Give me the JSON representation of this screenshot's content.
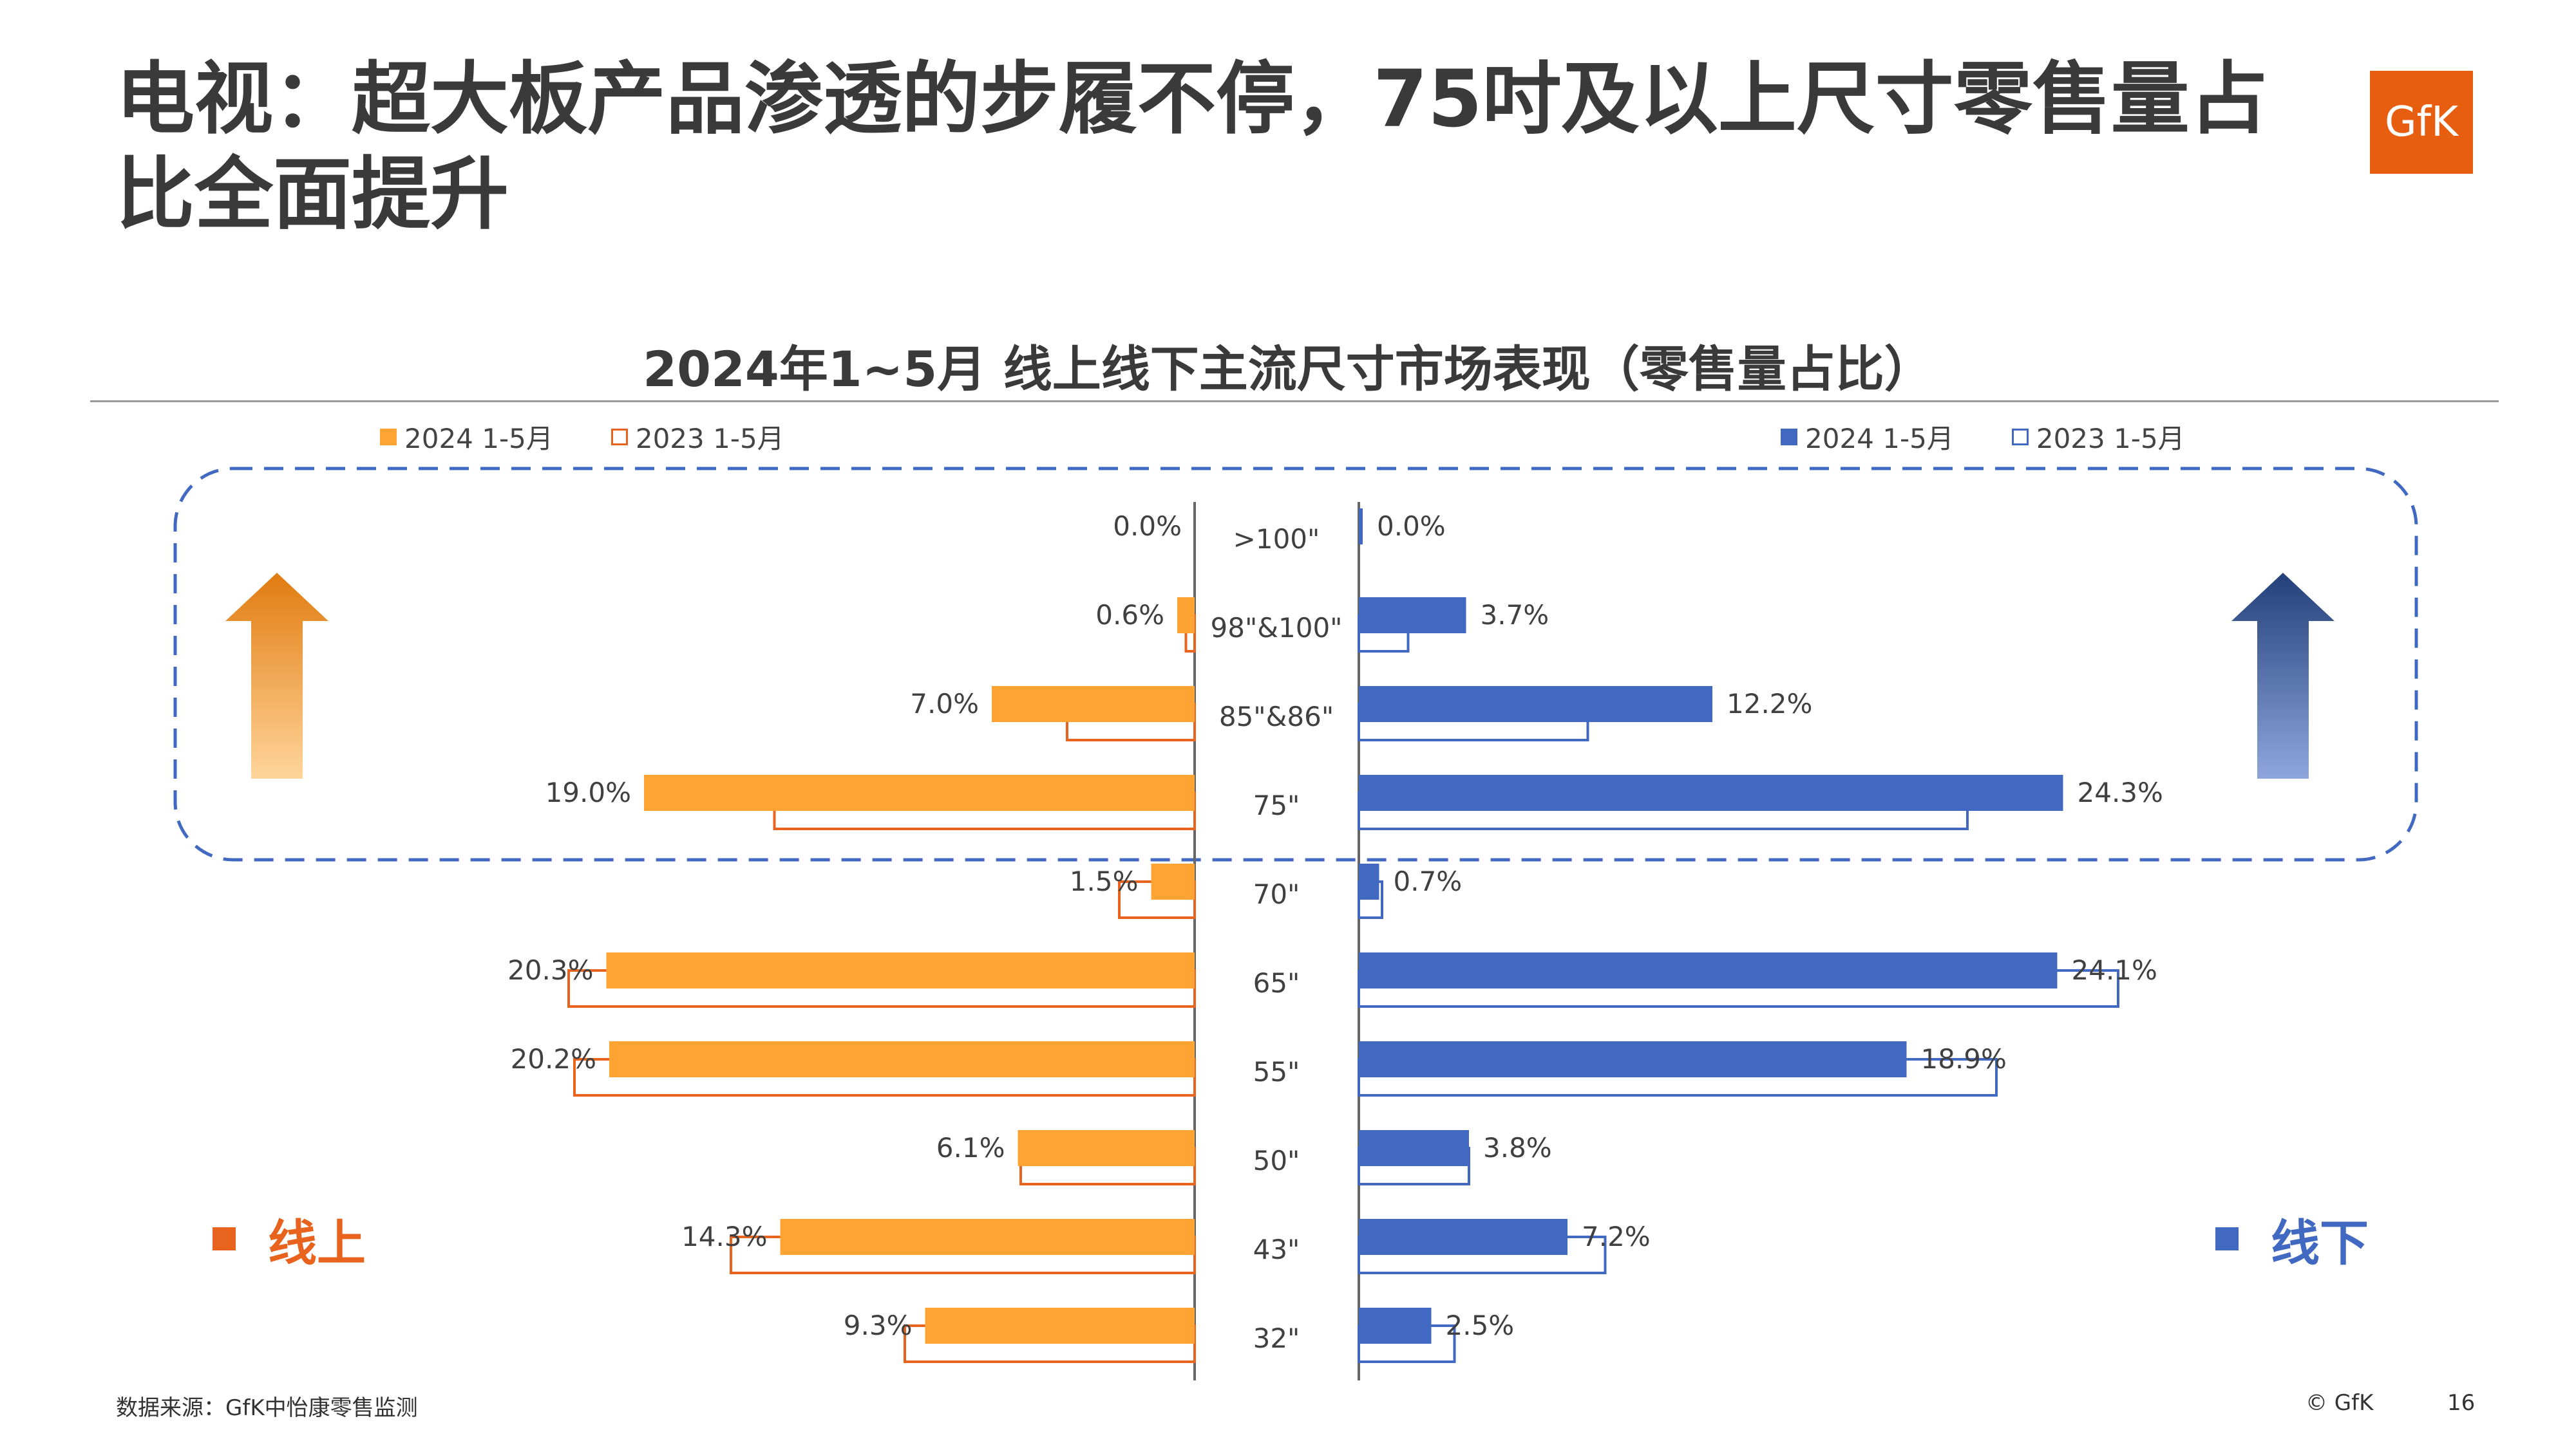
{
  "page": {
    "title": "电视：超大板产品渗透的步履不停，75吋及以上尺寸零售量占比全面提升",
    "logo_text": "GfK",
    "source_note": "数据来源：GfK中怡康零售监测",
    "copyright": "© GfK",
    "page_number": "16"
  },
  "labels": {
    "online": "线上",
    "offline": "线下"
  },
  "colors": {
    "online_2024": "#FFA433",
    "online_2023": "#E8641E",
    "offline_2024": "#4169C1",
    "offline_2023": "#4169C1",
    "online_label": "#E8641E",
    "offline_label": "#4169C1",
    "highlight_dash": "#4169C1"
  },
  "chart_data": {
    "type": "bar",
    "orientation": "horizontal-butterfly",
    "title": "2024年1~5月 线上线下主流尺寸市场表现（零售量占比）",
    "categories": [
      ">100\"",
      "98\"&100\"",
      "85\"&86\"",
      "75\"",
      "70\"",
      "65\"",
      "55\"",
      "50\"",
      "43\"",
      "32\""
    ],
    "online": {
      "legend": [
        "2024 1-5月",
        "2023 1-5月"
      ],
      "series": [
        {
          "name": "2024 1-5月",
          "values": [
            0.0,
            0.6,
            7.0,
            19.0,
            1.5,
            20.3,
            20.2,
            6.1,
            14.3,
            9.3
          ],
          "labels": [
            "0.0%",
            "0.6%",
            "7.0%",
            "19.0%",
            "1.5%",
            "20.3%",
            "20.2%",
            "6.1%",
            "14.3%",
            "9.3%"
          ]
        },
        {
          "name": "2023 1-5月",
          "values": [
            0.0,
            0.3,
            4.4,
            14.5,
            2.6,
            21.6,
            21.4,
            6.0,
            16.0,
            10.0
          ]
        }
      ]
    },
    "offline": {
      "legend": [
        "2024 1-5月",
        "2023 1-5月"
      ],
      "series": [
        {
          "name": "2024 1-5月",
          "values": [
            0.0,
            3.7,
            12.2,
            24.3,
            0.7,
            24.1,
            18.9,
            3.8,
            7.2,
            2.5
          ],
          "labels": [
            "0.0%",
            "3.7%",
            "12.2%",
            "24.3%",
            "0.7%",
            "24.1%",
            "18.9%",
            "3.8%",
            "7.2%",
            "2.5%"
          ]
        },
        {
          "name": "2023 1-5月",
          "values": [
            0.0,
            1.7,
            7.9,
            21.0,
            0.8,
            26.2,
            22.0,
            3.8,
            8.5,
            3.3
          ]
        }
      ]
    },
    "highlighted_categories": [
      ">100\"",
      "98\"&100\"",
      "85\"&86\"",
      "75\""
    ],
    "axis_max": 25
  }
}
